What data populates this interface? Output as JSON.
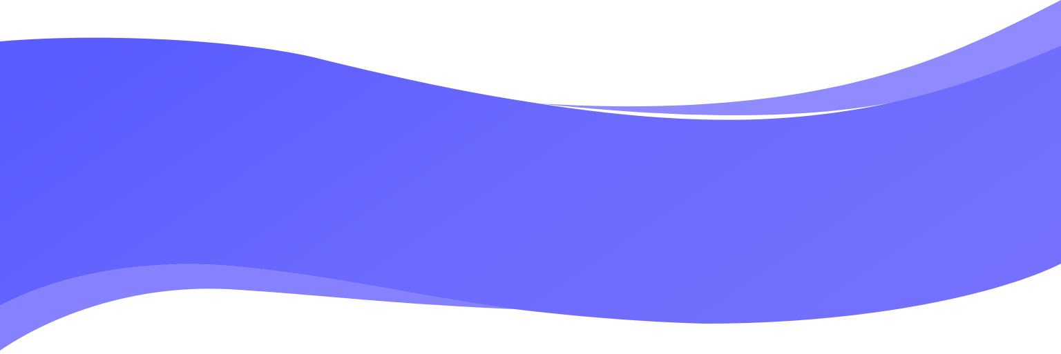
{
  "colors": {
    "main_start": "#5b5cff",
    "main_end": "#7571fe",
    "top_accent": "#8f8afd",
    "bottom_accent": "#8682ff",
    "background": "#ffffff"
  }
}
